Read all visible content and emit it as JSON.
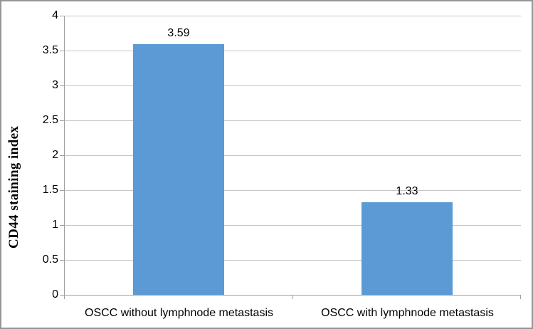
{
  "chart_data": {
    "type": "bar",
    "title": "",
    "xlabel": "",
    "ylabel": "CD44 staining index",
    "categories": [
      "OSCC without lymphnode metastasis",
      "OSCC with lymphnode metastasis"
    ],
    "values": [
      3.59,
      1.33
    ],
    "data_labels": [
      "3.59",
      "1.33"
    ],
    "ylim": [
      0,
      4
    ],
    "ytick_step": 0.5,
    "yticks": [
      "0",
      "0.5",
      "1",
      "1.5",
      "2",
      "2.5",
      "3",
      "3.5",
      "4"
    ],
    "grid": true,
    "legend": "none",
    "colors": {
      "bar": "#5B9AD5",
      "gridline": "#C6C6C6",
      "axis": "#A0A0A0",
      "text": "#000000",
      "figure_border": "#969696",
      "background": "#FFFFFF"
    }
  }
}
